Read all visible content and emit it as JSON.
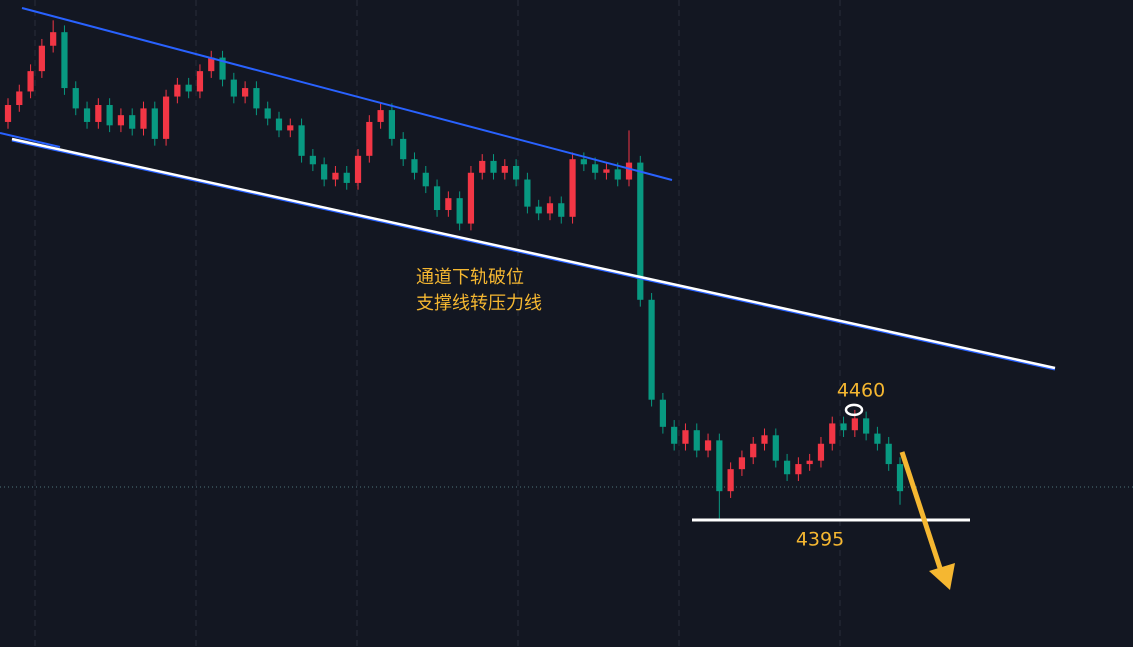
{
  "chart_data": {
    "type": "candlestick",
    "up_color": "#f23645",
    "down_color": "#089981",
    "ylim": [
      4320,
      4702
    ],
    "candles": [
      [
        4630,
        4644,
        4626,
        4640
      ],
      [
        4640,
        4652,
        4636,
        4648
      ],
      [
        4648,
        4664,
        4644,
        4660
      ],
      [
        4660,
        4679,
        4656,
        4675
      ],
      [
        4675,
        4690,
        4671,
        4683
      ],
      [
        4683,
        4687,
        4646,
        4650
      ],
      [
        4650,
        4654,
        4634,
        4638
      ],
      [
        4638,
        4642,
        4626,
        4630
      ],
      [
        4630,
        4644,
        4626,
        4640
      ],
      [
        4640,
        4644,
        4624,
        4628
      ],
      [
        4628,
        4638,
        4624,
        4634
      ],
      [
        4634,
        4638,
        4622,
        4626
      ],
      [
        4626,
        4642,
        4622,
        4638
      ],
      [
        4638,
        4642,
        4616,
        4620
      ],
      [
        4620,
        4649,
        4616,
        4645
      ],
      [
        4645,
        4656,
        4641,
        4652
      ],
      [
        4652,
        4656,
        4644,
        4648
      ],
      [
        4648,
        4664,
        4644,
        4660
      ],
      [
        4660,
        4672,
        4656,
        4668
      ],
      [
        4668,
        4672,
        4651,
        4655
      ],
      [
        4655,
        4659,
        4641,
        4645
      ],
      [
        4645,
        4654,
        4641,
        4650
      ],
      [
        4650,
        4654,
        4634,
        4638
      ],
      [
        4638,
        4642,
        4628,
        4632
      ],
      [
        4632,
        4636,
        4621,
        4625
      ],
      [
        4625,
        4632,
        4621,
        4628
      ],
      [
        4628,
        4632,
        4606,
        4610
      ],
      [
        4610,
        4614,
        4601,
        4605
      ],
      [
        4605,
        4609,
        4592,
        4596
      ],
      [
        4596,
        4604,
        4592,
        4600
      ],
      [
        4600,
        4604,
        4590,
        4594
      ],
      [
        4594,
        4614,
        4590,
        4610
      ],
      [
        4610,
        4634,
        4606,
        4630
      ],
      [
        4630,
        4641,
        4626,
        4637
      ],
      [
        4637,
        4641,
        4616,
        4620
      ],
      [
        4620,
        4624,
        4604,
        4608
      ],
      [
        4608,
        4612,
        4596,
        4600
      ],
      [
        4600,
        4604,
        4588,
        4592
      ],
      [
        4592,
        4596,
        4574,
        4578
      ],
      [
        4578,
        4589,
        4574,
        4585
      ],
      [
        4585,
        4589,
        4566,
        4570
      ],
      [
        4570,
        4604,
        4566,
        4600
      ],
      [
        4600,
        4611,
        4596,
        4607
      ],
      [
        4607,
        4611,
        4596,
        4600
      ],
      [
        4600,
        4608,
        4596,
        4604
      ],
      [
        4604,
        4608,
        4592,
        4596
      ],
      [
        4596,
        4600,
        4576,
        4580
      ],
      [
        4580,
        4584,
        4572,
        4576
      ],
      [
        4576,
        4586,
        4572,
        4582
      ],
      [
        4582,
        4586,
        4570,
        4574
      ],
      [
        4574,
        4612,
        4570,
        4608
      ],
      [
        4608,
        4612,
        4601,
        4605
      ],
      [
        4605,
        4609,
        4596,
        4600
      ],
      [
        4600,
        4606,
        4596,
        4602
      ],
      [
        4602,
        4606,
        4592,
        4596
      ],
      [
        4596,
        4625,
        4592,
        4606
      ],
      [
        4606,
        4610,
        4521,
        4525
      ],
      [
        4525,
        4529,
        4462,
        4466
      ],
      [
        4466,
        4470,
        4446,
        4450
      ],
      [
        4450,
        4454,
        4436,
        4440
      ],
      [
        4440,
        4452,
        4436,
        4448
      ],
      [
        4448,
        4452,
        4432,
        4436
      ],
      [
        4436,
        4446,
        4432,
        4442
      ],
      [
        4442,
        4446,
        4395,
        4412
      ],
      [
        4412,
        4429,
        4408,
        4425
      ],
      [
        4425,
        4436,
        4421,
        4432
      ],
      [
        4432,
        4444,
        4428,
        4440
      ],
      [
        4440,
        4449,
        4436,
        4445
      ],
      [
        4445,
        4449,
        4426,
        4430
      ],
      [
        4430,
        4434,
        4418,
        4422
      ],
      [
        4422,
        4432,
        4418,
        4428
      ],
      [
        4428,
        4434,
        4424,
        4430
      ],
      [
        4430,
        4444,
        4426,
        4440
      ],
      [
        4440,
        4456,
        4436,
        4452
      ],
      [
        4452,
        4456,
        4444,
        4448
      ],
      [
        4448,
        4460,
        4444,
        4455
      ],
      [
        4455,
        4459,
        4442,
        4446
      ],
      [
        4446,
        4450,
        4436,
        4440
      ],
      [
        4440,
        4444,
        4424,
        4428
      ],
      [
        4428,
        4432,
        4404,
        4412
      ]
    ],
    "annotation_lines": [
      "通道下轨破位",
      "支撑线转压力线"
    ],
    "resistance": 4460,
    "support": 4395
  }
}
